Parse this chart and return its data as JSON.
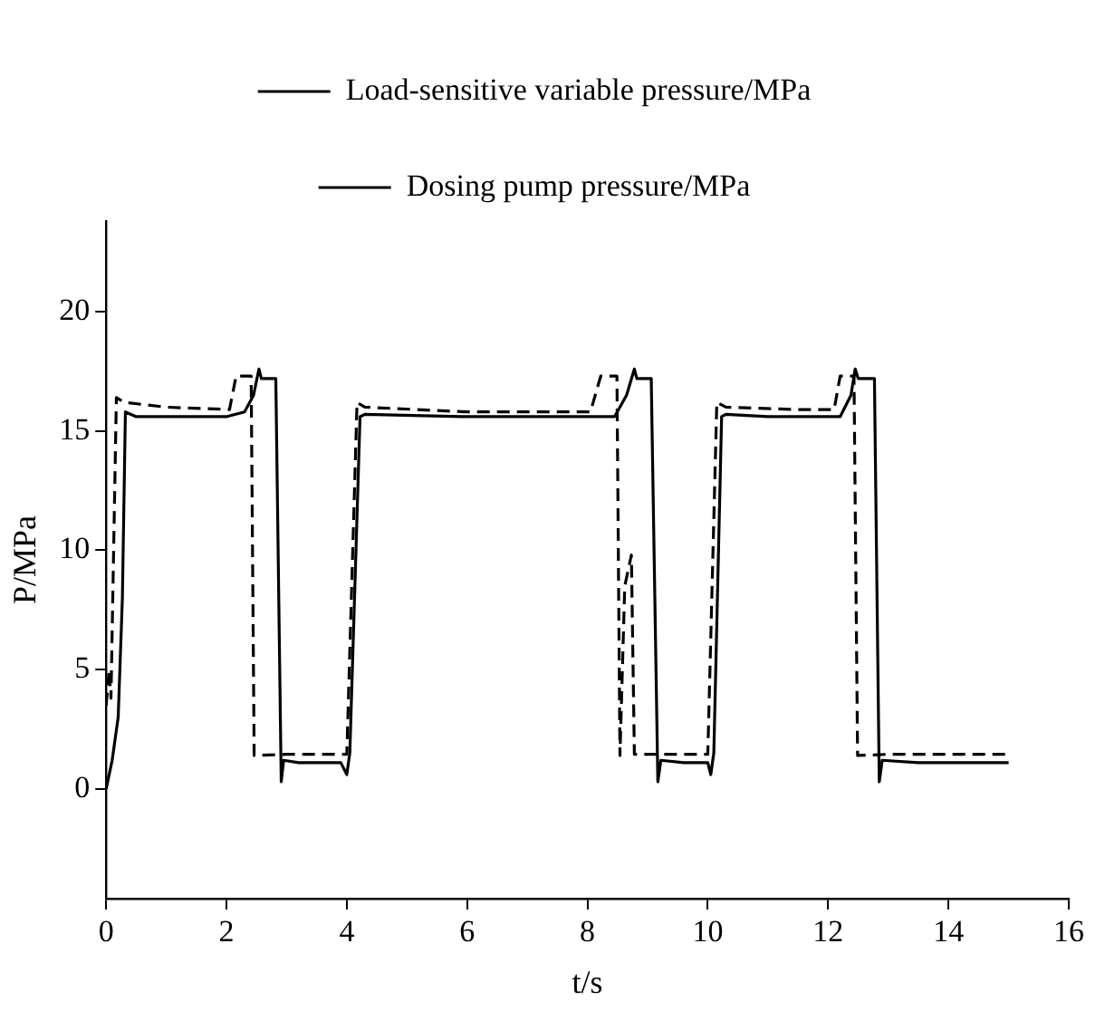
{
  "chart_data": {
    "type": "line",
    "xlabel": "t/s",
    "ylabel": "P/MPa",
    "xlim": [
      0,
      16
    ],
    "xticks": [
      0,
      2,
      4,
      6,
      8,
      10,
      12,
      14,
      16
    ],
    "ylim": [
      -4.6,
      23.8
    ],
    "yticks": [
      0,
      5,
      10,
      15,
      20
    ],
    "grid": false,
    "legend": "top",
    "marker": "none",
    "series": [
      {
        "name": "Load-sensitive variable pressure/MPa",
        "color": "#000000",
        "line_style": "solid",
        "x": [
          0,
          0.1,
          0.2,
          0.27,
          0.32,
          0.5,
          1.0,
          2.0,
          2.3,
          2.45,
          2.54,
          2.58,
          2.82,
          2.91,
          2.95,
          3.2,
          3.9,
          4.0,
          4.05,
          4.22,
          4.3,
          6.0,
          8.0,
          8.45,
          8.65,
          8.78,
          8.82,
          9.06,
          9.17,
          9.22,
          9.6,
          10.0,
          10.05,
          10.1,
          10.23,
          10.3,
          11.0,
          12.2,
          12.38,
          12.45,
          12.5,
          12.77,
          12.85,
          12.9,
          13.5,
          15.0
        ],
        "values": [
          0,
          1.2,
          3,
          8,
          15.8,
          15.6,
          15.6,
          15.6,
          15.8,
          16.5,
          17.6,
          17.2,
          17.2,
          0.3,
          1.2,
          1.1,
          1.1,
          0.6,
          1.5,
          15.6,
          15.7,
          15.6,
          15.6,
          15.6,
          16.5,
          17.6,
          17.2,
          17.2,
          0.3,
          1.2,
          1.1,
          1.1,
          0.6,
          1.5,
          15.6,
          15.7,
          15.6,
          15.6,
          16.5,
          17.6,
          17.2,
          17.2,
          0.3,
          1.2,
          1.1,
          1.1
        ]
      },
      {
        "name": "Dosing pump pressure/MPa",
        "color": "#000000",
        "line_style": "dashed",
        "x": [
          0,
          0.05,
          0.08,
          0.17,
          0.3,
          1.0,
          2.05,
          2.16,
          2.41,
          2.46,
          3.0,
          4.0,
          4.17,
          4.3,
          6.0,
          8.05,
          8.22,
          8.49,
          8.54,
          8.62,
          8.73,
          8.78,
          9.0,
          10.0,
          10.15,
          10.3,
          11.5,
          12.1,
          12.2,
          12.43,
          12.49,
          13.0,
          14.97
        ],
        "values": [
          3.5,
          5,
          3.8,
          16.4,
          16.2,
          16.0,
          15.9,
          17.3,
          17.3,
          1.4,
          1.45,
          1.45,
          16.2,
          16.0,
          15.8,
          15.8,
          17.3,
          17.3,
          1.4,
          8.5,
          9.8,
          1.45,
          1.45,
          1.45,
          16.2,
          16.0,
          15.9,
          15.9,
          17.3,
          17.3,
          1.4,
          1.45,
          1.45
        ]
      }
    ]
  }
}
